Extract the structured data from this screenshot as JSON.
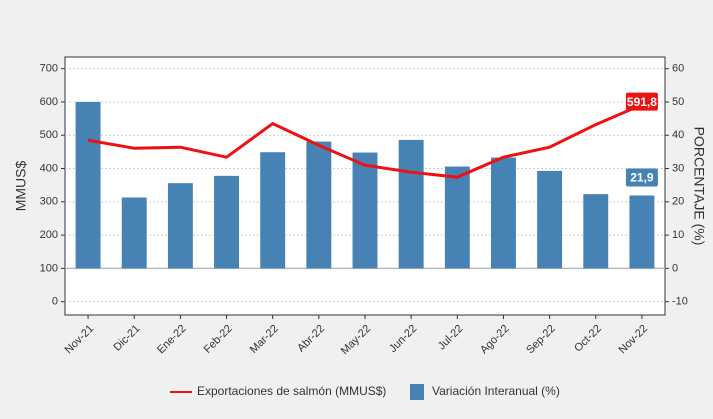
{
  "chart_data": {
    "type": "bar",
    "categories": [
      "Nov-21",
      "Dic-21",
      "Ene-22",
      "Feb-22",
      "Mar-22",
      "Abr-22",
      "May-22",
      "Jun-22",
      "Jul-22",
      "Ago-22",
      "Sep-22",
      "Oct-22",
      "Nov-22"
    ],
    "series": [
      {
        "name": "Exportaciones de salmón (MMUS$)",
        "type": "line",
        "axis": "y",
        "color": "#ee1111",
        "values": [
          485,
          461,
          464,
          434,
          535,
          470,
          410,
          389,
          374,
          434,
          464,
          532,
          591.8
        ],
        "value_labels": [
          null,
          null,
          null,
          null,
          null,
          null,
          null,
          null,
          null,
          null,
          null,
          null,
          "591,8"
        ]
      },
      {
        "name": "Variación Interanual (%)",
        "type": "bar",
        "axis": "y2",
        "color": "#4682b4",
        "values": [
          50,
          21.3,
          25.6,
          27.8,
          34.9,
          38.1,
          34.8,
          38.6,
          30.6,
          33.3,
          29.3,
          22.3,
          21.9
        ],
        "value_labels": [
          null,
          null,
          null,
          null,
          null,
          null,
          null,
          null,
          null,
          null,
          null,
          null,
          "21,9"
        ]
      }
    ],
    "ylabel": "MMUS$",
    "y2label": "PORCENTAJE (%)",
    "ylim": [
      -40,
      735
    ],
    "yticks": [
      0,
      100,
      200,
      300,
      400,
      500,
      600,
      700
    ],
    "y2lim": [
      -14,
      63.5
    ],
    "y2ticks": [
      -10,
      0,
      10,
      20,
      30,
      40,
      50,
      60
    ],
    "grid": true,
    "legend": "bottom"
  }
}
